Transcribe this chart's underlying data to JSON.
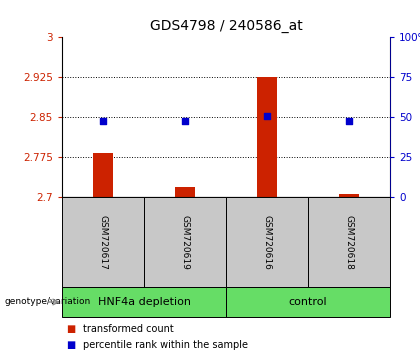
{
  "title": "GDS4798 / 240586_at",
  "samples": [
    "GSM720617",
    "GSM720619",
    "GSM720616",
    "GSM720618"
  ],
  "red_values": [
    2.783,
    2.718,
    2.925,
    2.705
  ],
  "blue_values": [
    2.843,
    2.843,
    2.852,
    2.843
  ],
  "baseline": 2.7,
  "ylim": [
    2.7,
    3.0
  ],
  "yticks_left": [
    2.7,
    2.775,
    2.85,
    2.925,
    3.0
  ],
  "ytick_labels_left": [
    "2.7",
    "2.775",
    "2.85",
    "2.925",
    "3"
  ],
  "yticks_right": [
    2.7,
    2.775,
    2.85,
    2.925,
    3.0
  ],
  "ytick_labels_right": [
    "0",
    "25",
    "50",
    "75",
    "100%"
  ],
  "hlines": [
    2.775,
    2.85,
    2.925
  ],
  "group1_label": "HNF4a depletion",
  "group2_label": "control",
  "bar_color": "#cc2200",
  "dot_color": "#0000cc",
  "bg_plot": "#ffffff",
  "bg_sample_labels": "#c8c8c8",
  "bg_group_labels": "#66dd66",
  "sample_label_fontsize": 6.5,
  "group_label_fontsize": 8,
  "title_fontsize": 10,
  "left_tick_color": "#cc2200",
  "right_tick_color": "#0000cc",
  "legend_red": "transformed count",
  "legend_blue": "percentile rank within the sample",
  "bar_width": 0.25,
  "dot_size": 22,
  "genotype_label": "genotype/variation"
}
